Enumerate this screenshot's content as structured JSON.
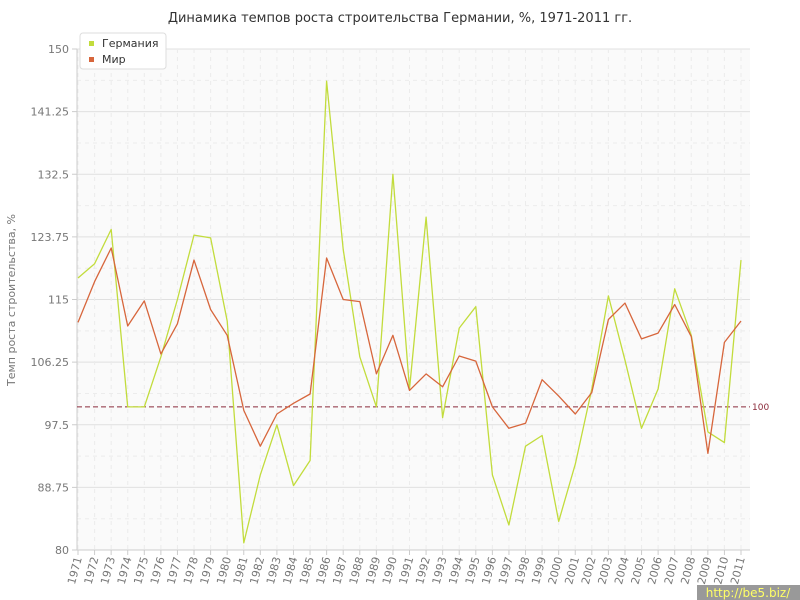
{
  "chart_data": {
    "type": "line",
    "title": "Динамика темпов роста строительства Германии, %, 1971-2011 гг.",
    "ylabel": "Темп роста строительства, %",
    "xlabel": "",
    "ylim": [
      80,
      150
    ],
    "yticks": [
      80,
      88.75,
      97.5,
      106.25,
      115,
      123.75,
      132.5,
      141.25,
      150
    ],
    "ytick_labels": [
      "80",
      "88.75",
      "97.5",
      "106.25",
      "115",
      "123.75",
      "132.5",
      "141.25",
      "150"
    ],
    "x": [
      "1971",
      "1972",
      "1973",
      "1974",
      "1975",
      "1976",
      "1977",
      "1978",
      "1979",
      "1980",
      "1981",
      "1982",
      "1983",
      "1984",
      "1985",
      "1986",
      "1987",
      "1988",
      "1989",
      "1990",
      "1991",
      "1992",
      "1993",
      "1994",
      "1995",
      "1996",
      "1997",
      "1998",
      "1999",
      "2000",
      "2001",
      "2002",
      "2003",
      "2004",
      "2005",
      "2006",
      "2007",
      "2008",
      "2009",
      "2010",
      "2011"
    ],
    "grid": true,
    "legend_position": "top-left",
    "series": [
      {
        "name": "Германия",
        "color": "#c2dc3c",
        "values": [
          118,
          120,
          124.8,
          100,
          100,
          107,
          115,
          124,
          123.6,
          112,
          81,
          90.5,
          97.5,
          89,
          92.5,
          145.5,
          122,
          107,
          100,
          132.5,
          102.5,
          126.5,
          98.5,
          111,
          114,
          90.5,
          83.5,
          94.5,
          96,
          84,
          92,
          102.5,
          115.5,
          106.5,
          97,
          102.5,
          116.5,
          110,
          96.5,
          95,
          120.5
        ]
      },
      {
        "name": "Мир",
        "color": "#d7663c",
        "values": [
          111.8,
          117.5,
          122.2,
          111.3,
          114.8,
          107.4,
          111.6,
          120.5,
          113.6,
          110,
          99.5,
          94.5,
          99,
          100.5,
          101.8,
          120.8,
          115,
          114.7,
          104.6,
          110,
          102.3,
          104.6,
          102.8,
          107.1,
          106.4,
          100,
          97,
          97.7,
          103.8,
          101.5,
          99,
          102,
          112.2,
          114.5,
          109.5,
          110.3,
          114.3,
          109.8,
          93.5,
          109,
          112
        ]
      }
    ],
    "reference_line": {
      "value": 100,
      "label": "100",
      "color": "#8b2b3b"
    }
  },
  "watermark": {
    "text": "http://be5.biz/"
  }
}
